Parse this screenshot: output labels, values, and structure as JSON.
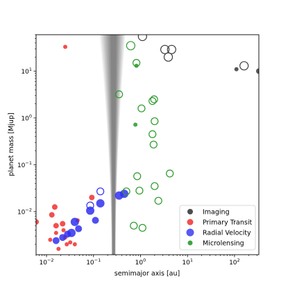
{
  "chart_data": {
    "type": "scatter",
    "title": "",
    "xlabel": "semimajor axis [au]",
    "ylabel": "planet mass [Mjup]",
    "xscale": "log",
    "yscale": "log",
    "xlim": [
      0.006,
      330
    ],
    "ylim": [
      0.0012,
      60
    ],
    "grid": false,
    "legend": {
      "placement": "lower-right",
      "entries": [
        "Imaging",
        "Primary Transit",
        "Radial Velocity",
        "Microlensing"
      ]
    },
    "x_ticks": [
      {
        "value": 0.01,
        "base": "10",
        "exp": "−2"
      },
      {
        "value": 0.1,
        "base": "10",
        "exp": "−1"
      },
      {
        "value": 1,
        "base": "10",
        "exp": "0"
      },
      {
        "value": 10,
        "base": "10",
        "exp": "1"
      },
      {
        "value": 100,
        "base": "10",
        "exp": "2"
      }
    ],
    "y_ticks": [
      {
        "value": 0.01,
        "base": "10",
        "exp": "−2"
      },
      {
        "value": 0.1,
        "base": "10",
        "exp": "−1"
      },
      {
        "value": 1,
        "base": "10",
        "exp": "0"
      },
      {
        "value": 10,
        "base": "10",
        "exp": "1"
      }
    ],
    "sensitivity_band": {
      "description_color": "#000000",
      "x_center": 0.27,
      "min_width_dex": 0.08,
      "max_width_dex": 0.55,
      "layers": 10
    },
    "series": [
      {
        "name": "Imaging",
        "color": "#3a3a3a",
        "points": [
          {
            "x": 1.1,
            "y": 55,
            "filled": false,
            "size": 6
          },
          {
            "x": 3.3,
            "y": 29,
            "filled": false,
            "size": 6
          },
          {
            "x": 4.6,
            "y": 29,
            "filled": false,
            "size": 6
          },
          {
            "x": 3.9,
            "y": 20,
            "filled": false,
            "size": 6
          },
          {
            "x": 160,
            "y": 13,
            "filled": false,
            "size": 6
          },
          {
            "x": 110,
            "y": 11,
            "filled": true,
            "size": 3
          },
          {
            "x": 330,
            "y": 10,
            "filled": true,
            "size": 4
          }
        ]
      },
      {
        "name": "Primary Transit",
        "color": "#f03030",
        "points": [
          {
            "x": 0.025,
            "y": 33,
            "filled": true,
            "size": 3
          },
          {
            "x": 0.006,
            "y": 0.006,
            "filled": true,
            "size": 4
          },
          {
            "x": 0.013,
            "y": 0.0085,
            "filled": true,
            "size": 4
          },
          {
            "x": 0.015,
            "y": 0.0125,
            "filled": true,
            "size": 4
          },
          {
            "x": 0.016,
            "y": 0.005,
            "filled": true,
            "size": 4
          },
          {
            "x": 0.016,
            "y": 0.0035,
            "filled": true,
            "size": 3
          },
          {
            "x": 0.012,
            "y": 0.0025,
            "filled": true,
            "size": 3
          },
          {
            "x": 0.022,
            "y": 0.0055,
            "filled": true,
            "size": 4
          },
          {
            "x": 0.025,
            "y": 0.0028,
            "filled": true,
            "size": 3
          },
          {
            "x": 0.027,
            "y": 0.002,
            "filled": true,
            "size": 3
          },
          {
            "x": 0.032,
            "y": 0.0022,
            "filled": true,
            "size": 3
          },
          {
            "x": 0.04,
            "y": 0.002,
            "filled": true,
            "size": 3
          },
          {
            "x": 0.046,
            "y": 0.0065,
            "filled": true,
            "size": 3
          },
          {
            "x": 0.092,
            "y": 0.02,
            "filled": true,
            "size": 4
          },
          {
            "x": 0.018,
            "y": 0.0016,
            "filled": true,
            "size": 3
          },
          {
            "x": 0.023,
            "y": 0.004,
            "filled": true,
            "size": 3
          }
        ]
      },
      {
        "name": "Radial Velocity",
        "color": "#3030f0",
        "points": [
          {
            "x": 0.016,
            "y": 0.0024,
            "filled": true,
            "size": 5
          },
          {
            "x": 0.022,
            "y": 0.0028,
            "filled": true,
            "size": 5
          },
          {
            "x": 0.028,
            "y": 0.0033,
            "filled": true,
            "size": 5
          },
          {
            "x": 0.034,
            "y": 0.0035,
            "filled": true,
            "size": 6
          },
          {
            "x": 0.04,
            "y": 0.006,
            "filled": true,
            "size": 6
          },
          {
            "x": 0.048,
            "y": 0.0043,
            "filled": true,
            "size": 5
          },
          {
            "x": 0.085,
            "y": 0.0105,
            "filled": true,
            "size": 6
          },
          {
            "x": 0.11,
            "y": 0.0065,
            "filled": true,
            "size": 5
          },
          {
            "x": 0.14,
            "y": 0.015,
            "filled": true,
            "size": 6
          },
          {
            "x": 0.35,
            "y": 0.022,
            "filled": true,
            "size": 6
          },
          {
            "x": 0.45,
            "y": 0.024,
            "filled": true,
            "size": 6
          },
          {
            "x": 0.085,
            "y": 0.0135,
            "filled": false,
            "size": 5
          },
          {
            "x": 0.14,
            "y": 0.027,
            "filled": false,
            "size": 5
          }
        ]
      },
      {
        "name": "Microlensing",
        "color": "#2a9a2a",
        "points": [
          {
            "x": 0.62,
            "y": 35,
            "filled": false,
            "size": 6
          },
          {
            "x": 0.82,
            "y": 15,
            "filled": false,
            "size": 5
          },
          {
            "x": 0.82,
            "y": 13,
            "filled": true,
            "size": 3
          },
          {
            "x": 0.35,
            "y": 3.2,
            "filled": false,
            "size": 5
          },
          {
            "x": 1.8,
            "y": 2.3,
            "filled": false,
            "size": 5
          },
          {
            "x": 1.95,
            "y": 2.5,
            "filled": false,
            "size": 5
          },
          {
            "x": 1.05,
            "y": 1.6,
            "filled": false,
            "size": 5
          },
          {
            "x": 2.0,
            "y": 0.85,
            "filled": false,
            "size": 5
          },
          {
            "x": 0.78,
            "y": 0.72,
            "filled": true,
            "size": 3
          },
          {
            "x": 1.8,
            "y": 0.45,
            "filled": false,
            "size": 5
          },
          {
            "x": 1.9,
            "y": 0.27,
            "filled": false,
            "size": 5
          },
          {
            "x": 4.2,
            "y": 0.065,
            "filled": false,
            "size": 5
          },
          {
            "x": 0.85,
            "y": 0.057,
            "filled": false,
            "size": 5
          },
          {
            "x": 0.5,
            "y": 0.027,
            "filled": false,
            "size": 5
          },
          {
            "x": 0.95,
            "y": 0.028,
            "filled": false,
            "size": 5
          },
          {
            "x": 2.0,
            "y": 0.035,
            "filled": false,
            "size": 5
          },
          {
            "x": 2.4,
            "y": 0.017,
            "filled": false,
            "size": 5
          },
          {
            "x": 0.72,
            "y": 0.005,
            "filled": false,
            "size": 5
          },
          {
            "x": 1.1,
            "y": 0.0045,
            "filled": false,
            "size": 5
          }
        ]
      }
    ]
  }
}
